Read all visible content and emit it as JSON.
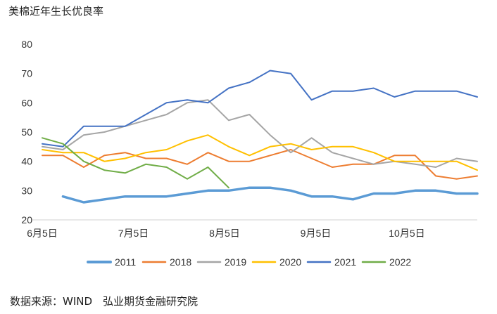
{
  "title": "美棉近年生长优良率",
  "footer": "数据来源：WIND　弘业期货金融研究院",
  "chart_data": {
    "type": "line",
    "title": "美棉近年生长优良率",
    "xlabel": "",
    "ylabel": "",
    "ylim": [
      20,
      80
    ],
    "yticks": [
      20,
      30,
      40,
      50,
      60,
      70,
      80
    ],
    "x_axis_note": "weekly points, 22 weeks",
    "xtick_labels": [
      {
        "label": "6月5日",
        "index": 0
      },
      {
        "label": "7月5日",
        "index": 4.4
      },
      {
        "label": "8月5日",
        "index": 8.8
      },
      {
        "label": "9月5日",
        "index": 13.2
      },
      {
        "label": "10月5日",
        "index": 17.6
      }
    ],
    "grid": false,
    "legend_position": "bottom",
    "series": [
      {
        "name": "2011",
        "color": "#5b9bd5",
        "width": 3.5,
        "start": 1,
        "values": [
          28,
          26,
          27,
          28,
          28,
          28,
          29,
          30,
          30,
          31,
          31,
          30,
          28,
          28,
          27,
          29,
          29,
          30,
          30,
          29,
          29
        ]
      },
      {
        "name": "2018",
        "color": "#ed7d31",
        "width": 2,
        "start": 0,
        "values": [
          42,
          42,
          38,
          42,
          43,
          41,
          41,
          39,
          43,
          40,
          40,
          42,
          44,
          41,
          38,
          39,
          39,
          42,
          42,
          35,
          34,
          35
        ]
      },
      {
        "name": "2019",
        "color": "#a5a5a5",
        "width": 2,
        "start": 0,
        "values": [
          45,
          44,
          49,
          50,
          52,
          54,
          56,
          60,
          61,
          54,
          56,
          49,
          43,
          48,
          43,
          41,
          39,
          40,
          39,
          38,
          41,
          40
        ]
      },
      {
        "name": "2020",
        "color": "#ffc000",
        "width": 2,
        "start": 0,
        "values": [
          44,
          43,
          43,
          40,
          41,
          43,
          44,
          47,
          49,
          45,
          42,
          45,
          46,
          44,
          45,
          45,
          43,
          40,
          40,
          40,
          40,
          37
        ]
      },
      {
        "name": "2021",
        "color": "#4472c4",
        "width": 2,
        "start": 0,
        "values": [
          46,
          45,
          52,
          52,
          52,
          56,
          60,
          61,
          60,
          65,
          67,
          71,
          70,
          61,
          64,
          64,
          65,
          62,
          64,
          64,
          64,
          62
        ]
      },
      {
        "name": "2022",
        "color": "#70ad47",
        "width": 2,
        "start": 0,
        "values": [
          48,
          46,
          40,
          37,
          36,
          39,
          38,
          34,
          38,
          31
        ]
      }
    ]
  }
}
